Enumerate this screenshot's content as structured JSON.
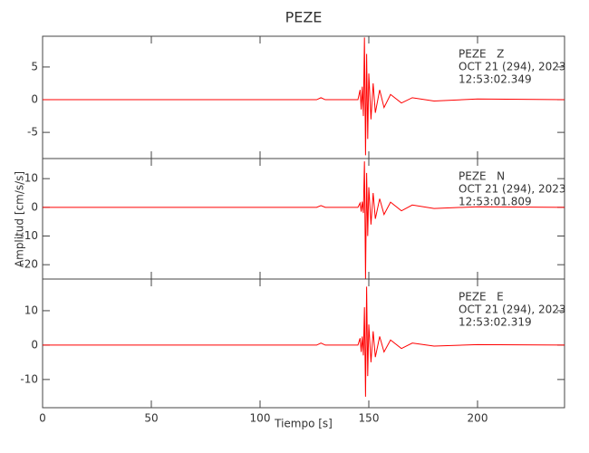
{
  "chart_data": {
    "type": "line",
    "title": "PEZE",
    "xlabel": "Tiempo [s]",
    "ylabel": "Amplitud [cm/s/s]",
    "xlim": [
      0,
      240
    ],
    "xticks": [
      0,
      50,
      100,
      150,
      200
    ],
    "panels": [
      {
        "ylim": [
          -9,
          9.7
        ],
        "yticks": [
          -5,
          0,
          5
        ],
        "annotations": [
          "PEZE   Z",
          "OCT 21 (294), 2023",
          "12:53:02.349"
        ],
        "series": [
          {
            "name": "PEZE Z",
            "color": "#ff0000",
            "x": [
              0,
              126,
              128,
              130,
              145,
              146,
              146.5,
              147,
              147.5,
              148,
              148.5,
              149,
              149.5,
              150,
              151,
              152,
              153,
              155,
              157,
              160,
              165,
              170,
              180,
              200,
              240
            ],
            "values": [
              0,
              0,
              0.3,
              0,
              0,
              1.5,
              -1.5,
              2,
              -2.5,
              9.5,
              -8.5,
              7,
              -6,
              4,
              -3,
              2.5,
              -2,
              1.5,
              -1.2,
              0.8,
              -0.5,
              0.3,
              -0.2,
              0.1,
              0
            ]
          }
        ]
      },
      {
        "ylim": [
          -25,
          17
        ],
        "yticks": [
          -20,
          -10,
          0,
          10
        ],
        "annotations": [
          "PEZE   N",
          "OCT 21 (294), 2023",
          "12:53:01.809"
        ],
        "series": [
          {
            "name": "PEZE N",
            "color": "#ff0000",
            "x": [
              0,
              126,
              128,
              130,
              145,
              146,
              146.5,
              147,
              147.5,
              148,
              148.5,
              149,
              149.5,
              150,
              151,
              152,
              153,
              155,
              157,
              160,
              165,
              170,
              180,
              200,
              240
            ],
            "values": [
              0,
              0,
              0.6,
              0,
              0,
              1.5,
              -1.5,
              2,
              -2,
              16,
              -25,
              12,
              -10,
              7,
              -6,
              5,
              -4,
              3,
              -2.5,
              1.8,
              -1.2,
              0.8,
              -0.4,
              0.2,
              0
            ]
          }
        ]
      },
      {
        "ylim": [
          -18.2,
          19.2
        ],
        "yticks": [
          -10,
          0,
          10
        ],
        "annotations": [
          "PEZE   E",
          "OCT 21 (294), 2023",
          "12:53:02.319"
        ],
        "series": [
          {
            "name": "PEZE E",
            "color": "#ff0000",
            "x": [
              0,
              126,
              128,
              130,
              145,
              146,
              146.5,
              147,
              147.5,
              148,
              148.5,
              149,
              149.5,
              150,
              151,
              152,
              153,
              155,
              157,
              160,
              165,
              170,
              180,
              200,
              240
            ],
            "values": [
              0,
              0,
              0.6,
              0,
              0,
              2,
              -2,
              2.5,
              -3,
              11,
              -15,
              17,
              -9,
              6,
              -5,
              4,
              -3.5,
              2.5,
              -2,
              1.5,
              -1,
              0.6,
              -0.3,
              0.15,
              0
            ]
          }
        ]
      }
    ]
  }
}
